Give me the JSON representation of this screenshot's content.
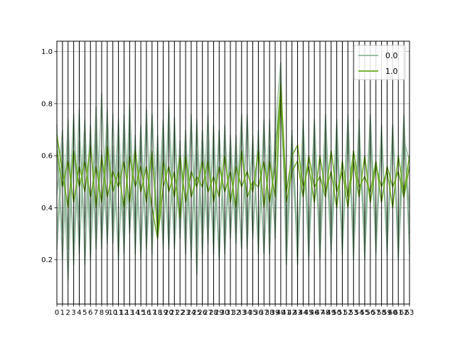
{
  "chart_data": {
    "type": "line",
    "subtype": "parallel-coordinates",
    "title": "",
    "xlabel": "",
    "ylabel": "",
    "x": [
      0,
      1,
      2,
      3,
      4,
      5,
      6,
      7,
      8,
      9,
      10,
      11,
      12,
      13,
      14,
      15,
      16,
      17,
      18,
      19,
      20,
      21,
      22,
      23,
      24,
      25,
      26,
      27,
      28,
      29,
      30,
      31,
      32,
      33,
      34,
      35,
      36,
      37,
      38,
      39,
      40,
      41,
      42,
      43,
      44,
      45,
      46,
      47,
      48,
      49,
      50,
      51,
      52,
      53,
      54,
      55,
      56,
      57,
      58,
      59,
      60,
      61,
      62,
      63
    ],
    "x_tick_labels": [
      "0",
      "1",
      "2",
      "3",
      "4",
      "5",
      "6",
      "7",
      "8",
      "9",
      "10",
      "11",
      "12",
      "13",
      "14",
      "15",
      "16",
      "17",
      "18",
      "19",
      "20",
      "21",
      "22",
      "23",
      "24",
      "25",
      "26",
      "27",
      "28",
      "29",
      "30",
      "31",
      "32",
      "33",
      "34",
      "35",
      "36",
      "37",
      "38",
      "39",
      "40",
      "41",
      "42",
      "43",
      "44",
      "45",
      "46",
      "47",
      "48",
      "49",
      "50",
      "51",
      "52",
      "53",
      "54",
      "55",
      "56",
      "57",
      "58",
      "59",
      "60",
      "61",
      "62",
      "63"
    ],
    "ylim": [
      0.03,
      1.04
    ],
    "y_ticks": [
      0.2,
      0.4,
      0.6,
      0.8,
      1.0
    ],
    "y_tick_labels": [
      "0.2",
      "0.4",
      "0.6",
      "0.8",
      "1.0"
    ],
    "grid": true,
    "vertical_axis_lines": true,
    "legend_position": "top-right",
    "colors": {
      "class_0": "#8db596",
      "class_1": "#6aaa1e",
      "axis": "#000000",
      "grid": "#b0b0b0"
    },
    "series": [
      {
        "name": "0.0",
        "color": "#8db596",
        "lines": [
          [
            0.3,
            0.65,
            0.12,
            0.74,
            0.22,
            0.7,
            0.28,
            0.79,
            0.24,
            0.72,
            0.34,
            0.68,
            0.22,
            0.8,
            0.3,
            0.64,
            0.26,
            0.76,
            0.32,
            0.7,
            0.24,
            0.75,
            0.28,
            0.66,
            0.2,
            0.72,
            0.3,
            0.61,
            0.26,
            0.7,
            0.22,
            0.68,
            0.3,
            0.73,
            0.24,
            0.66,
            0.28,
            0.74,
            0.22,
            0.7,
            0.96,
            0.18,
            0.62,
            0.24,
            0.7,
            0.2,
            0.74,
            0.28,
            0.66,
            0.22,
            0.72,
            0.26,
            0.68,
            0.3,
            0.74,
            0.2,
            0.7,
            0.28,
            0.66,
            0.24,
            0.72,
            0.22,
            0.68,
            0.3
          ],
          [
            0.72,
            0.2,
            0.66,
            0.26,
            0.78,
            0.18,
            0.7,
            0.3,
            0.84,
            0.26,
            0.64,
            0.22,
            0.76,
            0.32,
            0.68,
            0.2,
            0.74,
            0.28,
            0.62,
            0.24,
            0.8,
            0.3,
            0.66,
            0.22,
            0.74,
            0.26,
            0.7,
            0.32,
            0.64,
            0.2,
            0.72,
            0.28,
            0.68,
            0.24,
            0.76,
            0.3,
            0.66,
            0.22,
            0.74,
            0.28,
            0.9,
            0.26,
            0.7,
            0.18,
            0.64,
            0.3,
            0.72,
            0.22,
            0.76,
            0.28,
            0.68,
            0.24,
            0.74,
            0.2,
            0.7,
            0.32,
            0.66,
            0.26,
            0.72,
            0.22,
            0.68,
            0.28,
            0.74,
            0.3
          ],
          [
            0.45,
            0.7,
            0.24,
            0.62,
            0.36,
            0.74,
            0.2,
            0.66,
            0.3,
            0.78,
            0.26,
            0.6,
            0.34,
            0.72,
            0.22,
            0.68,
            0.28,
            0.76,
            0.3,
            0.64,
            0.24,
            0.7,
            0.36,
            0.62,
            0.26,
            0.74,
            0.22,
            0.66,
            0.3,
            0.7,
            0.24,
            0.62,
            0.34,
            0.76,
            0.28,
            0.68,
            0.22,
            0.72,
            0.3,
            0.64,
            0.86,
            0.3,
            0.58,
            0.26,
            0.7,
            0.22,
            0.66,
            0.32,
            0.74,
            0.24,
            0.62,
            0.3,
            0.76,
            0.26,
            0.68,
            0.22,
            0.72,
            0.28,
            0.64,
            0.32,
            0.7,
            0.24,
            0.66,
            0.58
          ],
          [
            0.6,
            0.3,
            0.74,
            0.18,
            0.66,
            0.32,
            0.72,
            0.24,
            0.62,
            0.28,
            0.76,
            0.2,
            0.7,
            0.3,
            0.64,
            0.24,
            0.78,
            0.22,
            0.68,
            0.28,
            0.72,
            0.24,
            0.6,
            0.3,
            0.76,
            0.14,
            0.66,
            0.26,
            0.72,
            0.2,
            0.68,
            0.3,
            0.62,
            0.24,
            0.74,
            0.28,
            0.7,
            0.22,
            0.64,
            0.3,
            0.92,
            0.24,
            0.68,
            0.3,
            0.62,
            0.26,
            0.72,
            0.2,
            0.66,
            0.28,
            0.74,
            0.22,
            0.7,
            0.26,
            0.64,
            0.3,
            0.76,
            0.22,
            0.68,
            0.26,
            0.72,
            0.2,
            0.64,
            0.4
          ],
          [
            0.24,
            0.58,
            0.3,
            0.76,
            0.26,
            0.64,
            0.36,
            0.7,
            0.28,
            0.62,
            0.32,
            0.74,
            0.26,
            0.66,
            0.34,
            0.72,
            0.24,
            0.6,
            0.36,
            0.74,
            0.28,
            0.66,
            0.32,
            0.7,
            0.26,
            0.62,
            0.34,
            0.76,
            0.22,
            0.68,
            0.3,
            0.64,
            0.26,
            0.72,
            0.34,
            0.62,
            0.28,
            0.7,
            0.32,
            0.66,
            0.8,
            0.34,
            0.66,
            0.22,
            0.74,
            0.3,
            0.62,
            0.26,
            0.7,
            0.34,
            0.66,
            0.24,
            0.72,
            0.3,
            0.62,
            0.28,
            0.74,
            0.32,
            0.66,
            0.26,
            0.7,
            0.3,
            0.76,
            0.22
          ]
        ]
      },
      {
        "name": "1.0",
        "color": "#6aaa1e",
        "lines": [
          [
            0.68,
            0.54,
            0.4,
            0.62,
            0.48,
            0.58,
            0.44,
            0.56,
            0.42,
            0.64,
            0.46,
            0.54,
            0.4,
            0.6,
            0.48,
            0.56,
            0.42,
            0.62,
            0.3,
            0.58,
            0.46,
            0.54,
            0.36,
            0.6,
            0.44,
            0.52,
            0.48,
            0.58,
            0.42,
            0.56,
            0.46,
            0.54,
            0.4,
            0.62,
            0.44,
            0.5,
            0.48,
            0.58,
            0.42,
            0.56,
            0.88,
            0.46,
            0.6,
            0.64,
            0.48,
            0.56,
            0.42,
            0.6,
            0.46,
            0.54,
            0.4,
            0.58,
            0.44,
            0.62,
            0.48,
            0.52,
            0.46,
            0.58,
            0.42,
            0.56,
            0.48,
            0.54,
            0.44,
            0.56
          ],
          [
            0.62,
            0.48,
            0.58,
            0.42,
            0.56,
            0.46,
            0.64,
            0.4,
            0.6,
            0.44,
            0.54,
            0.48,
            0.58,
            0.42,
            0.62,
            0.46,
            0.56,
            0.4,
            0.28,
            0.48,
            0.56,
            0.44,
            0.6,
            0.42,
            0.54,
            0.48,
            0.58,
            0.46,
            0.52,
            0.44,
            0.6,
            0.42,
            0.56,
            0.48,
            0.54,
            0.46,
            0.62,
            0.4,
            0.58,
            0.44,
            0.82,
            0.42,
            0.54,
            0.58,
            0.44,
            0.6,
            0.48,
            0.52,
            0.44,
            0.62,
            0.46,
            0.54,
            0.4,
            0.58,
            0.44,
            0.6,
            0.42,
            0.56,
            0.48,
            0.54,
            0.4,
            0.6,
            0.46,
            0.6
          ]
        ]
      }
    ]
  }
}
